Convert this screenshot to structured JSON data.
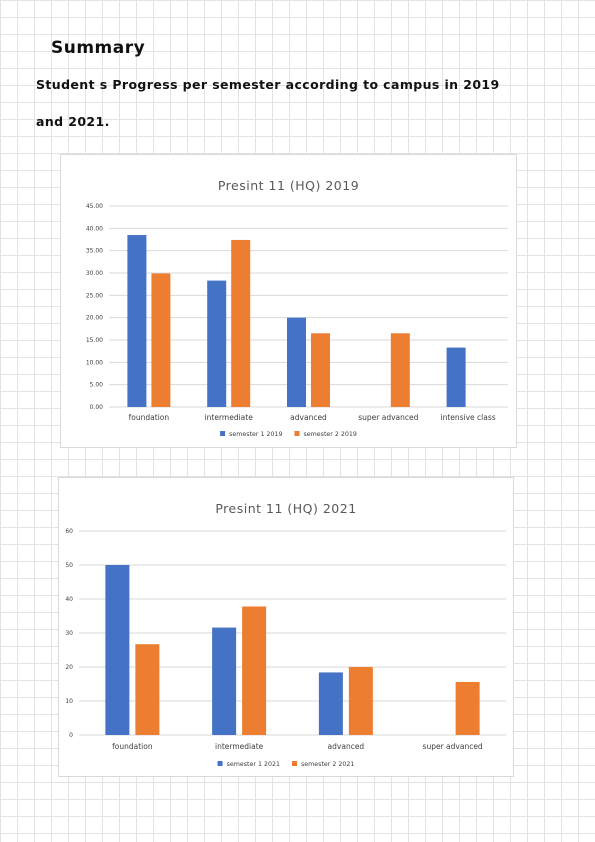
{
  "page": {
    "heading": "Summary",
    "intro_line_1": "Student s Progress per semester according to campus in 2019",
    "intro_line_2": "and 2021."
  },
  "colors": {
    "series_1": "#4472C4",
    "series_2": "#ED7D31",
    "grid": "#D9D9D9"
  },
  "chart_data": [
    {
      "type": "bar",
      "title": "Presint 11 (HQ) 2019",
      "xlabel": "",
      "ylabel": "",
      "categories": [
        "foundation",
        "intermediate",
        "advanced",
        "super advanced",
        "intensive class"
      ],
      "series": [
        {
          "name": "semester 1 2019",
          "values": [
            38.5,
            28.3,
            20.0,
            null,
            13.3
          ]
        },
        {
          "name": "semester 2 2019",
          "values": [
            29.9,
            37.4,
            16.5,
            16.5,
            null
          ]
        }
      ],
      "ylim": [
        0,
        45
      ],
      "yticks": [
        0,
        5,
        10,
        15,
        20,
        25,
        30,
        35,
        40,
        45
      ],
      "ytick_labels": [
        "0.00",
        "5.00",
        "10.00",
        "15.00",
        "20.00",
        "25.00",
        "30.00",
        "35.00",
        "40.00",
        "45.00"
      ],
      "grid": true,
      "legend_position": "bottom"
    },
    {
      "type": "bar",
      "title": "Presint 11 (HQ) 2021",
      "xlabel": "",
      "ylabel": "",
      "categories": [
        "foundation",
        "intermediate",
        "advanced",
        "super advanced"
      ],
      "series": [
        {
          "name": "semester 1 2021",
          "values": [
            50.0,
            31.6,
            18.4,
            null
          ]
        },
        {
          "name": "semester 2 2021",
          "values": [
            26.7,
            37.8,
            20.0,
            15.6
          ]
        }
      ],
      "ylim": [
        0,
        60
      ],
      "yticks": [
        0,
        10,
        20,
        30,
        40,
        50,
        60
      ],
      "ytick_labels": [
        "0",
        "10",
        "20",
        "30",
        "40",
        "50",
        "60"
      ],
      "grid": true,
      "legend_position": "bottom"
    }
  ]
}
